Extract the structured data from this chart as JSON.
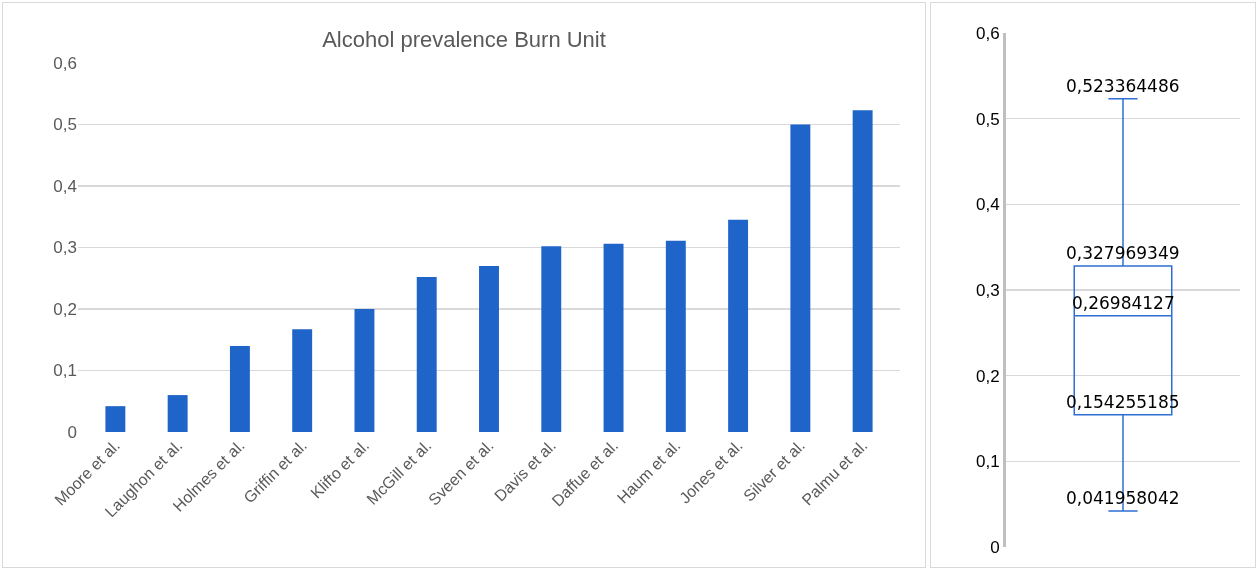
{
  "chart_data": [
    {
      "type": "bar",
      "title": "Alcohol prevalence Burn Unit",
      "categories": [
        "Moore et al.",
        "Laughon et al.",
        "Holmes et al.",
        "Griffin et al.",
        "Klifto et al.",
        "McGill et al.",
        "Sveen et al.",
        "Davis et al.",
        "Daffue et al.",
        "Haum et al.",
        "Jones et al.",
        "Silver et al.",
        "Palmu et al."
      ],
      "values": [
        0.042,
        0.06,
        0.14,
        0.167,
        0.2,
        0.252,
        0.27,
        0.302,
        0.306,
        0.311,
        0.345,
        0.5,
        0.523
      ],
      "color": "#1f64c8",
      "ylim": [
        0,
        0.6
      ],
      "yticks": [
        {
          "value": 0,
          "label": "0"
        },
        {
          "value": 0.1,
          "label": "0,1"
        },
        {
          "value": 0.2,
          "label": "0,2"
        },
        {
          "value": 0.3,
          "label": "0,3"
        },
        {
          "value": 0.4,
          "label": "0,4"
        },
        {
          "value": 0.5,
          "label": "0,5"
        },
        {
          "value": 0.6,
          "label": "0,6"
        }
      ],
      "grid": "y",
      "legend": false
    },
    {
      "type": "box",
      "categories": [
        null
      ],
      "boxes": [
        {
          "low": 0.041958042,
          "q1": 0.154255185,
          "median": 0.26984127,
          "q3": 0.327969349,
          "high": 0.523364486
        }
      ],
      "color": "#2e6fd4",
      "ylim": [
        0,
        0.6
      ],
      "yticks": [
        {
          "value": 0,
          "label": "0"
        },
        {
          "value": 0.1,
          "label": "0,1"
        },
        {
          "value": 0.2,
          "label": "0,2"
        },
        {
          "value": 0.3,
          "label": "0,3"
        },
        {
          "value": 0.4,
          "label": "0,4"
        },
        {
          "value": 0.5,
          "label": "0,5"
        },
        {
          "value": 0.6,
          "label": "0,6"
        }
      ],
      "grid": "y",
      "legend": false,
      "tick_labels": "y",
      "annotations": [
        {
          "text": "0,041958042",
          "y": 0.041958042
        },
        {
          "text": "0,154255185",
          "y": 0.154255185
        },
        {
          "text": "0,26984127",
          "y": 0.26984127
        },
        {
          "text": "0,327969349",
          "y": 0.327969349
        },
        {
          "text": "0,523364486",
          "y": 0.523364486
        }
      ]
    }
  ]
}
